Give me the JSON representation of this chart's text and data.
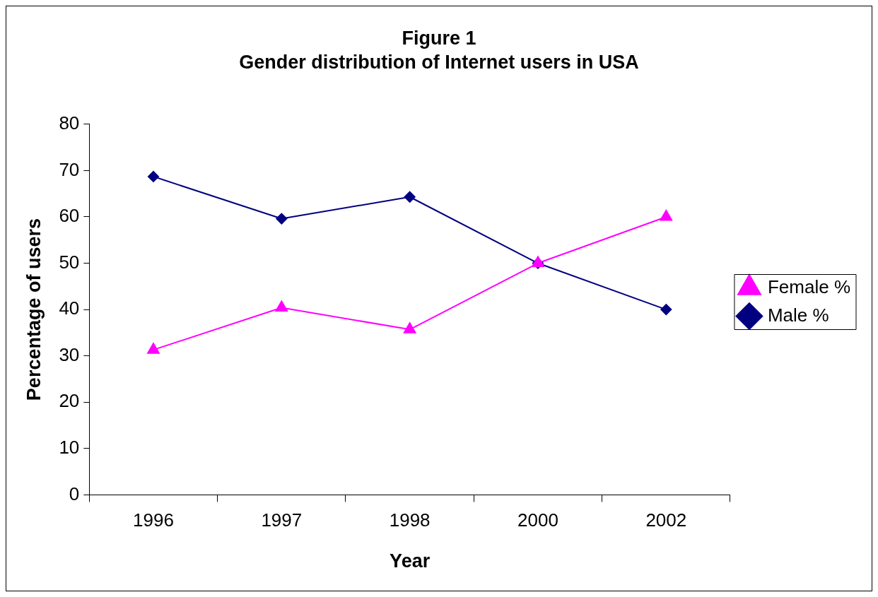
{
  "chart_data": {
    "type": "line",
    "title": "Figure 1",
    "subtitle": "Gender distribution of Internet users in USA",
    "xlabel": "Year",
    "ylabel": "Percentage of users",
    "categories": [
      "1996",
      "1997",
      "1998",
      "2000",
      "2002"
    ],
    "series": [
      {
        "name": "Male %",
        "color": "#000080",
        "marker": "diamond",
        "values": [
          68.7,
          59.6,
          64.3,
          50,
          40
        ]
      },
      {
        "name": "Female %",
        "color": "#ff00ff",
        "marker": "triangle",
        "values": [
          31.3,
          40.4,
          35.7,
          50,
          60
        ]
      }
    ],
    "ylim": [
      0,
      80
    ],
    "yticks": [
      0,
      10,
      20,
      30,
      40,
      50,
      60,
      70,
      80
    ],
    "grid": false,
    "legend": "right",
    "line_style": "solid"
  }
}
